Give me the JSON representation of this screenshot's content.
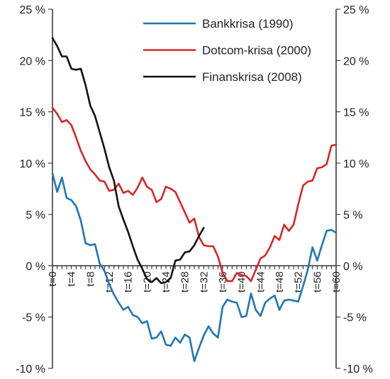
{
  "chart_data": {
    "type": "line",
    "title": "",
    "xlabel": "",
    "ylabel": "",
    "ylim": [
      -10,
      25
    ],
    "y_ticks": [
      -10,
      -5,
      0,
      5,
      10,
      15,
      20,
      25
    ],
    "y_tick_labels": [
      "-10 %",
      "-5 %",
      "0 %",
      "5 %",
      "10 %",
      "15 %",
      "20 %",
      "25 %"
    ],
    "y_axis_both_sides": true,
    "xlim": [
      0,
      60
    ],
    "x_tick_labels": [
      "t=0",
      "t=4",
      "t=8",
      "t=12",
      "t=16",
      "t=20",
      "t=24",
      "t=28",
      "t=32",
      "t=36",
      "t=40",
      "t=44",
      "t=48",
      "t=52",
      "t=56",
      "t=60"
    ],
    "x_tick_values": [
      0,
      4,
      8,
      12,
      16,
      20,
      24,
      28,
      32,
      36,
      40,
      44,
      48,
      52,
      56,
      60
    ],
    "grid": false,
    "legend_placement": "top-center",
    "series": [
      {
        "name": "Bankkrisa (1990)",
        "color": "#1f77b4",
        "x": [
          0,
          1,
          2,
          3,
          4,
          5,
          6,
          7,
          8,
          9,
          10,
          11,
          12,
          13,
          14,
          15,
          16,
          17,
          18,
          19,
          20,
          21,
          22,
          23,
          24,
          25,
          26,
          27,
          28,
          29,
          30,
          31,
          32,
          33,
          34,
          35,
          36,
          37,
          38,
          39,
          40,
          41,
          42,
          43,
          44,
          45,
          46,
          47,
          48,
          49,
          50,
          51,
          52,
          53,
          54,
          55,
          56,
          57,
          58,
          59,
          60
        ],
        "values": [
          9.0,
          7.2,
          8.6,
          6.6,
          6.4,
          5.8,
          4.4,
          2.2,
          2.0,
          2.1,
          0.2,
          -0.5,
          -1.8,
          -2.8,
          -3.6,
          -4.3,
          -4.0,
          -4.8,
          -5.0,
          -5.6,
          -5.4,
          -7.1,
          -7.0,
          -6.4,
          -7.7,
          -7.8,
          -7.0,
          -7.5,
          -6.7,
          -7.0,
          -9.3,
          -8.0,
          -6.8,
          -5.9,
          -6.6,
          -7.0,
          -4.0,
          -3.3,
          -3.5,
          -3.6,
          -5.0,
          -4.9,
          -2.7,
          -4.3,
          -4.9,
          -3.6,
          -3.2,
          -2.9,
          -4.3,
          -3.4,
          -3.3,
          -3.4,
          -3.5,
          -2.0,
          -0.4,
          1.8,
          0.5,
          2.0,
          3.4,
          3.5,
          3.2
        ]
      },
      {
        "name": "Dotcom-krisa (2000)",
        "color": "#d62728",
        "x": [
          0,
          1,
          2,
          3,
          4,
          5,
          6,
          7,
          8,
          9,
          10,
          11,
          12,
          13,
          14,
          15,
          16,
          17,
          18,
          19,
          20,
          21,
          22,
          23,
          24,
          25,
          26,
          27,
          28,
          29,
          30,
          31,
          32,
          33,
          34,
          35,
          36,
          37,
          38,
          39,
          40,
          41,
          42,
          43,
          44,
          45,
          46,
          47,
          48,
          49,
          50,
          51,
          52,
          53,
          54,
          55,
          56,
          57,
          58,
          59,
          60
        ],
        "values": [
          15.4,
          14.8,
          14.0,
          14.2,
          13.7,
          12.5,
          11.2,
          10.2,
          9.4,
          8.9,
          8.3,
          8.2,
          7.3,
          7.4,
          8.0,
          7.1,
          7.3,
          6.9,
          7.6,
          8.6,
          7.7,
          7.4,
          6.2,
          6.5,
          7.7,
          7.5,
          7.2,
          6.2,
          5.2,
          4.2,
          4.6,
          2.8,
          2.0,
          1.9,
          1.9,
          0.9,
          -0.7,
          -1.5,
          -1.5,
          -0.7,
          -0.9,
          -1.0,
          -1.5,
          -0.4,
          0.7,
          1.0,
          1.8,
          2.9,
          2.5,
          4.0,
          3.4,
          4.0,
          6.0,
          7.8,
          8.2,
          8.3,
          9.5,
          9.6,
          9.9,
          11.7,
          11.8
        ]
      },
      {
        "name": "Finanskrisa (2008)",
        "color": "#111111",
        "x": [
          0,
          1,
          2,
          3,
          4,
          5,
          6,
          7,
          8,
          9,
          10,
          11,
          12,
          13,
          14,
          15,
          16,
          17,
          18,
          19,
          20,
          21,
          22,
          23,
          24,
          25,
          26,
          27,
          28,
          29,
          30,
          31,
          32,
          33
        ],
        "values": [
          22.2,
          21.4,
          20.4,
          20.4,
          19.2,
          19.1,
          19.2,
          17.6,
          15.6,
          14.6,
          13.0,
          11.4,
          9.6,
          8.3,
          5.8,
          4.5,
          3.3,
          1.9,
          0.6,
          -0.3,
          -1.3,
          -1.6,
          -1.2,
          -1.7,
          -1.6,
          -1.2,
          0.5,
          0.6,
          1.3,
          1.4,
          2.0,
          2.9,
          3.7,
          null
        ]
      }
    ]
  }
}
